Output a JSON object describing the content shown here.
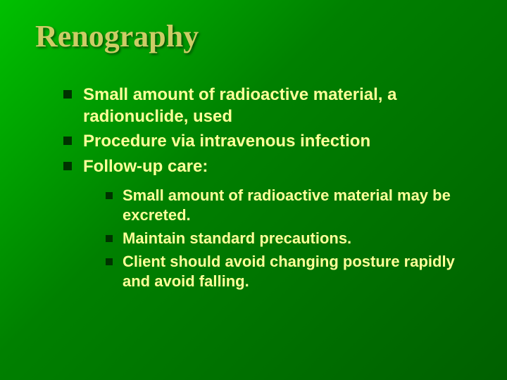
{
  "slide": {
    "title": "Renography",
    "title_color": "#cccc66",
    "title_fontsize": 44,
    "text_color": "#ffff99",
    "bullet_color": "#003300",
    "background_start": "#00c000",
    "background_end": "#006000",
    "main_fontsize": 24,
    "sub_fontsize": 22,
    "bullets": [
      "Small amount of radioactive material, a radionuclide, used",
      "Procedure via intravenous infection",
      "Follow-up care:"
    ],
    "sub_bullets": [
      "Small amount of radioactive material may be excreted.",
      "Maintain standard precautions.",
      "Client should avoid changing posture rapidly and avoid falling."
    ]
  }
}
